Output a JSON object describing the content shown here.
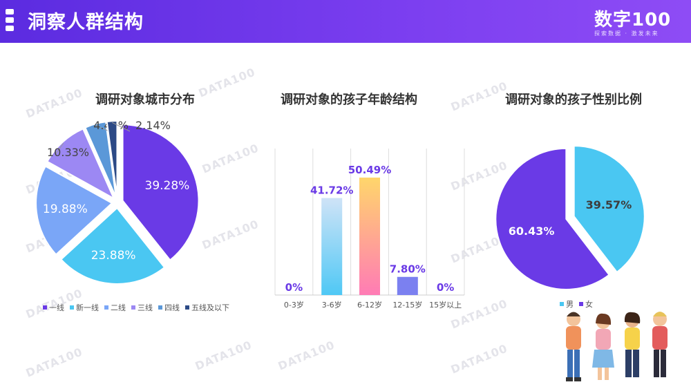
{
  "header": {
    "title": "洞察人群结构"
  },
  "brand": {
    "name": "数字100",
    "sub": "探索数据 · 激发未来"
  },
  "watermark": "DATA100",
  "colors": {
    "purple": "#6a3ae6",
    "cyan": "#4ac7f2",
    "blue": "#7aa6f7",
    "lavender": "#9c88f3",
    "steel": "#5b98d8",
    "navy": "#2c4a86",
    "accent": "#6a3ae6"
  },
  "chart_data": [
    {
      "type": "pie",
      "title": "调研对象城市分布",
      "categories": [
        "一线",
        "新一线",
        "二线",
        "三线",
        "四线",
        "五线及以下"
      ],
      "values": [
        39.28,
        23.88,
        19.88,
        10.33,
        4.48,
        2.14
      ],
      "labels": [
        "39.28%",
        "23.88%",
        "19.88%",
        "10.33%",
        "4.48%",
        "2.14%"
      ],
      "colors": [
        "#6a3ae6",
        "#4ac7f2",
        "#7aa6f7",
        "#9c88f3",
        "#5b98d8",
        "#2c4a86"
      ],
      "legend": "bottom"
    },
    {
      "type": "bar",
      "title": "调研对象的孩子年龄结构",
      "categories": [
        "0-3岁",
        "3-6岁",
        "6-12岁",
        "12-15岁",
        "15岁以上"
      ],
      "values": [
        0,
        41.72,
        50.49,
        7.8,
        0
      ],
      "labels": [
        "0%",
        "41.72%",
        "50.49%",
        "7.80%",
        "0%"
      ],
      "grid": true
    },
    {
      "type": "pie",
      "title": "调研对象的孩子性别比例",
      "categories": [
        "男",
        "女"
      ],
      "values": [
        39.57,
        60.43
      ],
      "labels": [
        "39.57%",
        "60.43%"
      ],
      "colors": [
        "#4ac7f2",
        "#6a3ae6"
      ],
      "legend": "bottom"
    }
  ]
}
